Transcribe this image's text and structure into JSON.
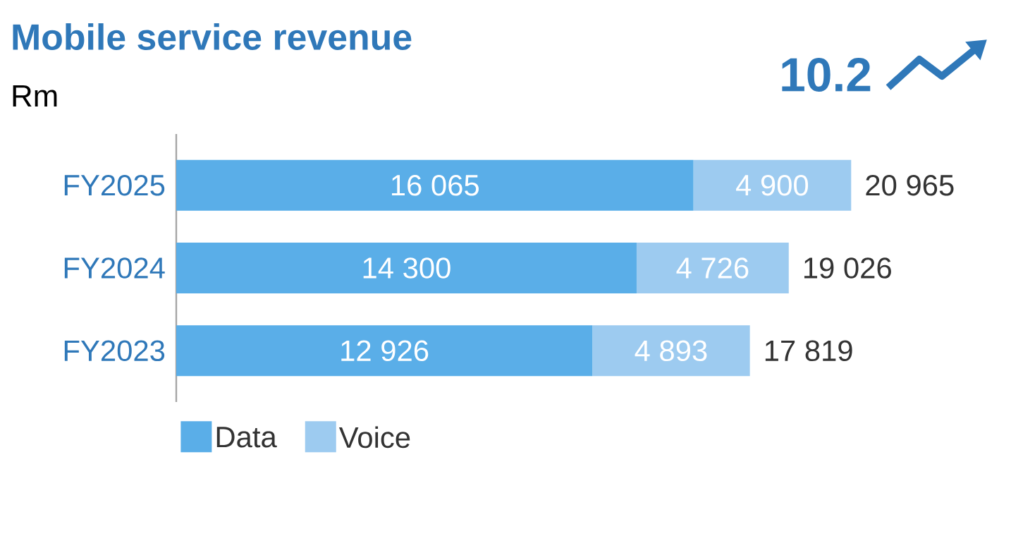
{
  "chart_data": {
    "type": "bar",
    "orientation": "horizontal",
    "stacked": true,
    "title": "Mobile service revenue",
    "subtitle": "Rm",
    "categories": [
      "FY2025",
      "FY2024",
      "FY2023"
    ],
    "series": [
      {
        "name": "Data",
        "color": "#5aaee8",
        "values": [
          16065,
          14300,
          12926
        ],
        "value_labels": [
          "16 065",
          "14 300",
          "12 926"
        ]
      },
      {
        "name": "Voice",
        "color": "#9dcbf0",
        "values": [
          4900,
          4726,
          4893
        ],
        "value_labels": [
          "4 900",
          "4 726",
          "4 893"
        ]
      }
    ],
    "totals": [
      "20 965",
      "19 026",
      "17 819"
    ],
    "annotations": [
      "10.2"
    ],
    "legend": "bottom left"
  }
}
